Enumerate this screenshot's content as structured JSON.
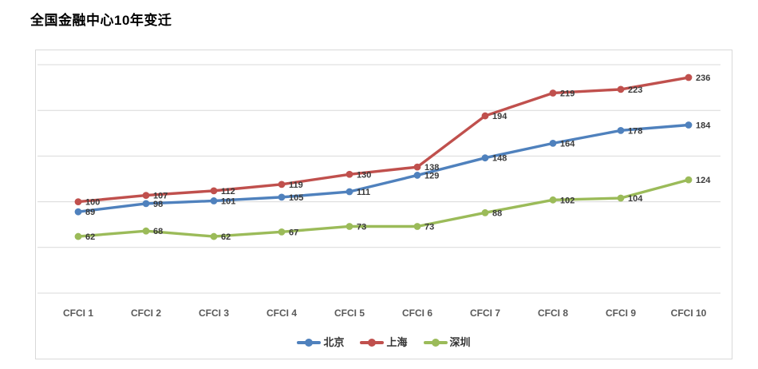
{
  "page": {
    "title": "全国金融中心10年变迁"
  },
  "chart_data": {
    "type": "line",
    "title": "全国金融中心10年变迁",
    "xlabel": "",
    "ylabel": "",
    "categories": [
      "CFCI 1",
      "CFCI 2",
      "CFCI 3",
      "CFCI 4",
      "CFCI 5",
      "CFCI 6",
      "CFCI 7",
      "CFCI 8",
      "CFCI 9",
      "CFCI 10"
    ],
    "series": [
      {
        "name": "北京",
        "color": "#4F81BD",
        "values": [
          89,
          98,
          101,
          105,
          111,
          129,
          148,
          164,
          178,
          184
        ]
      },
      {
        "name": "上海",
        "color": "#C0504D",
        "values": [
          100,
          107,
          112,
          119,
          130,
          138,
          194,
          219,
          223,
          236
        ]
      },
      {
        "name": "深圳",
        "color": "#9BBB59",
        "values": [
          62,
          68,
          62,
          67,
          73,
          73,
          88,
          102,
          104,
          124
        ]
      }
    ],
    "ylim": [
      0,
      250
    ],
    "ytick_step": 50,
    "y_axis_labels_visible": false,
    "grid": "horizontal",
    "legend_position": "bottom",
    "data_labels": "right-of-point",
    "colors": {
      "gridline": "#D9D9D9",
      "panel_border": "#D9D9D9",
      "axis_label": "#595959",
      "data_label": "#3a3a3a",
      "title": "#000000"
    }
  }
}
